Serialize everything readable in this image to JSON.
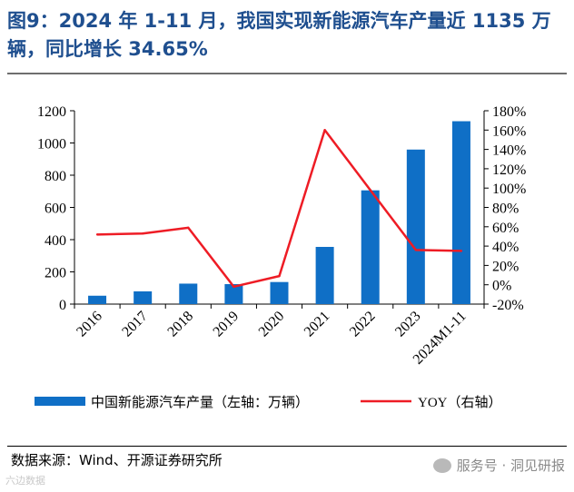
{
  "figure": {
    "title": "图9：2024 年 1-11 月，我国实现新能源汽车产量近 1135 万辆，同比增长 34.65%",
    "source": "数据来源：Wind、开源证券研究所",
    "watermark": "服务号 · 洞见研报",
    "corner_mark": "六边数据"
  },
  "colors": {
    "bar": "#0f6fc6",
    "line": "#ee1c25"
  },
  "chart_data": {
    "type": "bar",
    "title": "",
    "categories": [
      "2016",
      "2017",
      "2018",
      "2019",
      "2020",
      "2021",
      "2022",
      "2023",
      "2024M1-11"
    ],
    "series": [
      {
        "name": "中国新能源汽车产量（左轴：万辆）",
        "type": "bar",
        "axis": "left",
        "values": [
          52,
          79,
          127,
          124,
          137,
          355,
          706,
          959,
          1135
        ]
      },
      {
        "name": "YOY（右轴）",
        "type": "line",
        "axis": "right",
        "values": [
          52,
          53,
          59,
          -2,
          9,
          160,
          98,
          36,
          35
        ]
      }
    ],
    "y_left": {
      "min": 0,
      "max": 1200,
      "step": 200,
      "ticks": [
        "0",
        "200",
        "400",
        "600",
        "800",
        "1000",
        "1200"
      ]
    },
    "y_right": {
      "min": -20,
      "max": 180,
      "step": 20,
      "ticks": [
        "-20%",
        "0%",
        "20%",
        "40%",
        "60%",
        "80%",
        "100%",
        "120%",
        "140%",
        "160%",
        "180%"
      ]
    },
    "legend": {
      "position": "bottom"
    }
  }
}
